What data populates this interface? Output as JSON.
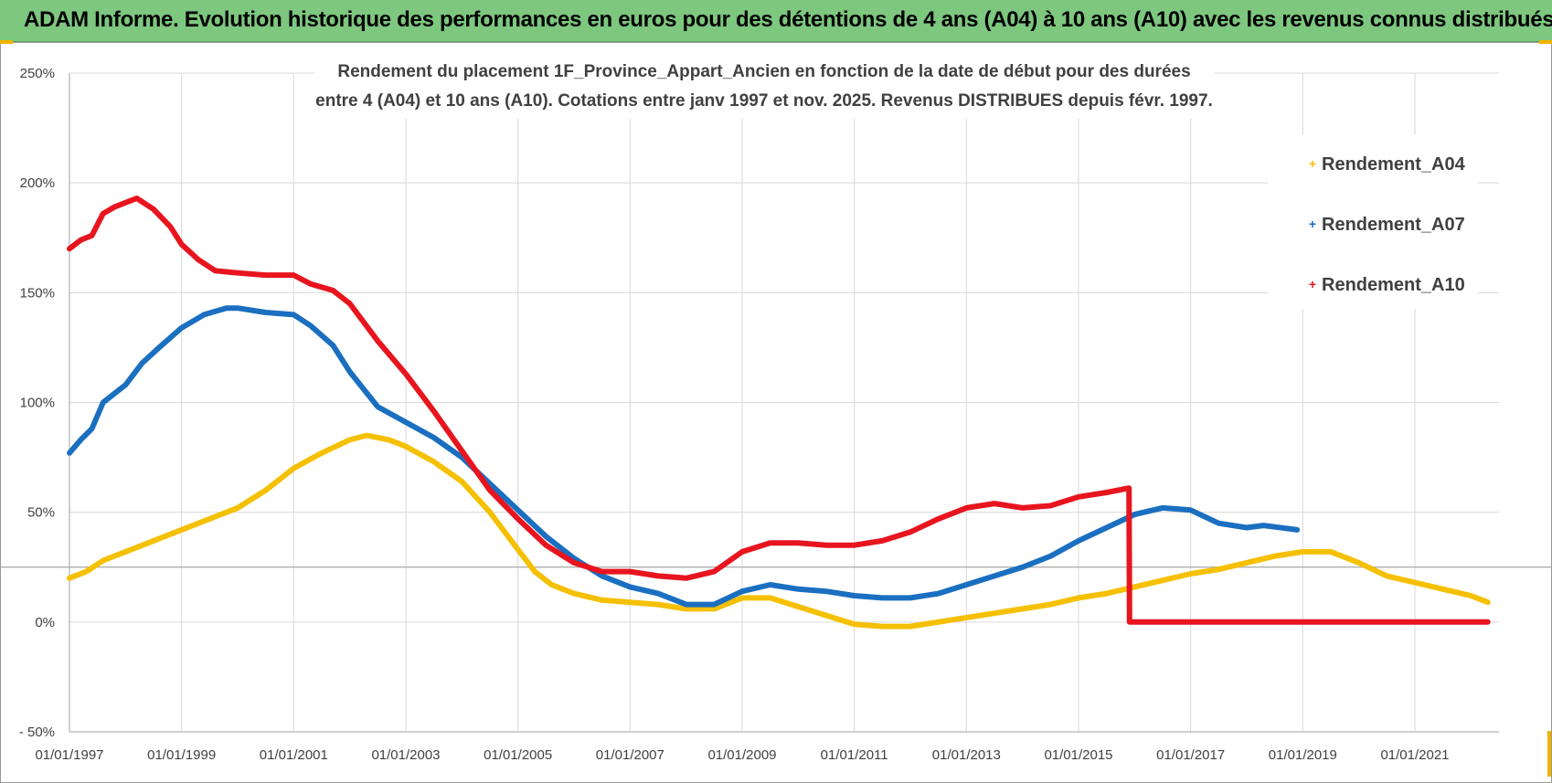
{
  "header": {
    "title": "ADAM Informe. Evolution historique des performances en euros pour des détentions de 4 ans (A04) à 10 ans (A10) avec les revenus connus distribués"
  },
  "colors": {
    "banner": "#7dc77f",
    "grid": "#d9d9d9",
    "axis": "#bfbfbf"
  },
  "chart_data": {
    "type": "line",
    "title_lines": [
      "Rendement du placement 1F_Province_Appart_Ancien en fonction de la date de début pour des durées",
      "entre 4 (A04) et 10 ans (A10).  Cotations entre janv 1997 et  nov. 2025. Revenus DISTRIBUES depuis févr. 1997."
    ],
    "xlabel": "",
    "ylabel": "",
    "x_range": [
      1997.0,
      2022.5
    ],
    "ylim": [
      -50,
      250
    ],
    "y_ticks": [
      -50,
      0,
      50,
      100,
      150,
      200,
      250
    ],
    "y_tick_labels": [
      "- 50%",
      "0%",
      "50%",
      "100%",
      "150%",
      "200%",
      "250%"
    ],
    "x_ticks": [
      1997,
      1999,
      2001,
      2003,
      2005,
      2007,
      2009,
      2011,
      2013,
      2015,
      2017,
      2019,
      2021
    ],
    "x_tick_labels": [
      "01/01/1997",
      "01/01/1999",
      "01/01/2001",
      "01/01/2003",
      "01/01/2005",
      "01/01/2007",
      "01/01/2009",
      "01/01/2011",
      "01/01/2013",
      "01/01/2015",
      "01/01/2017",
      "01/01/2019",
      "01/01/2021"
    ],
    "reference_line": 25,
    "legend_position": "top-right",
    "series": [
      {
        "name": "Rendement_A04",
        "color": "#f5c000",
        "x": [
          1997.0,
          1997.3,
          1997.6,
          1998.0,
          1998.5,
          1999.0,
          1999.5,
          2000.0,
          2000.5,
          2001.0,
          2001.5,
          2002.0,
          2002.3,
          2002.7,
          2003.0,
          2003.5,
          2004.0,
          2004.5,
          2005.0,
          2005.3,
          2005.6,
          2006.0,
          2006.5,
          2007.0,
          2007.5,
          2008.0,
          2008.5,
          2009.0,
          2009.5,
          2010.0,
          2010.5,
          2011.0,
          2011.5,
          2012.0,
          2012.5,
          2013.0,
          2013.5,
          2014.0,
          2014.5,
          2015.0,
          2015.5,
          2016.0,
          2016.5,
          2017.0,
          2017.5,
          2018.0,
          2018.5,
          2019.0,
          2019.5,
          2020.0,
          2020.5,
          2021.0,
          2021.5,
          2022.0,
          2022.3
        ],
        "values": [
          20,
          23,
          28,
          32,
          37,
          42,
          47,
          52,
          60,
          70,
          77,
          83,
          85,
          83,
          80,
          73,
          64,
          50,
          33,
          23,
          17,
          13,
          10,
          9,
          8,
          6,
          6,
          11,
          11,
          7,
          3,
          -1,
          -2,
          -2,
          0,
          2,
          4,
          6,
          8,
          11,
          13,
          16,
          19,
          22,
          24,
          27,
          30,
          32,
          32,
          27,
          21,
          18,
          15,
          12,
          9
        ]
      },
      {
        "name": "Rendement_A07",
        "color": "#1a6fc0",
        "x": [
          1997.0,
          1997.2,
          1997.4,
          1997.6,
          1998.0,
          1998.3,
          1998.6,
          1999.0,
          1999.4,
          1999.8,
          2000.0,
          2000.5,
          2001.0,
          2001.3,
          2001.7,
          2002.0,
          2002.5,
          2003.0,
          2003.5,
          2004.0,
          2004.5,
          2005.0,
          2005.5,
          2006.0,
          2006.5,
          2007.0,
          2007.5,
          2008.0,
          2008.5,
          2009.0,
          2009.5,
          2010.0,
          2010.5,
          2011.0,
          2011.5,
          2012.0,
          2012.5,
          2013.0,
          2013.5,
          2014.0,
          2014.5,
          2015.0,
          2015.5,
          2016.0,
          2016.5,
          2017.0,
          2017.5,
          2018.0,
          2018.3,
          2018.9
        ],
        "values": [
          77,
          83,
          88,
          100,
          108,
          118,
          125,
          134,
          140,
          143,
          143,
          141,
          140,
          135,
          126,
          114,
          98,
          91,
          84,
          75,
          63,
          51,
          39,
          29,
          21,
          16,
          13,
          8,
          8,
          14,
          17,
          15,
          14,
          12,
          11,
          11,
          13,
          17,
          21,
          25,
          30,
          37,
          43,
          49,
          52,
          51,
          45,
          43,
          44,
          42
        ]
      },
      {
        "name": "Rendement_A10",
        "color": "#e8141e",
        "x": [
          1997.0,
          1997.2,
          1997.4,
          1997.6,
          1997.8,
          1998.0,
          1998.2,
          1998.5,
          1998.8,
          1999.0,
          1999.3,
          1999.6,
          2000.0,
          2000.5,
          2001.0,
          2001.3,
          2001.7,
          2002.0,
          2002.5,
          2003.0,
          2003.5,
          2004.0,
          2004.5,
          2005.0,
          2005.5,
          2006.0,
          2006.5,
          2007.0,
          2007.5,
          2008.0,
          2008.5,
          2009.0,
          2009.5,
          2010.0,
          2010.5,
          2011.0,
          2011.5,
          2012.0,
          2012.5,
          2013.0,
          2013.5,
          2014.0,
          2014.5,
          2015.0,
          2015.5,
          2015.9,
          2015.91,
          2022.3
        ],
        "values": [
          170,
          174,
          176,
          186,
          189,
          191,
          193,
          188,
          180,
          172,
          165,
          160,
          159,
          158,
          158,
          154,
          151,
          145,
          128,
          113,
          96,
          78,
          60,
          47,
          35,
          27,
          23,
          23,
          21,
          20,
          23,
          32,
          36,
          36,
          35,
          35,
          37,
          41,
          47,
          52,
          54,
          52,
          53,
          57,
          59,
          61,
          0,
          0
        ]
      }
    ]
  }
}
